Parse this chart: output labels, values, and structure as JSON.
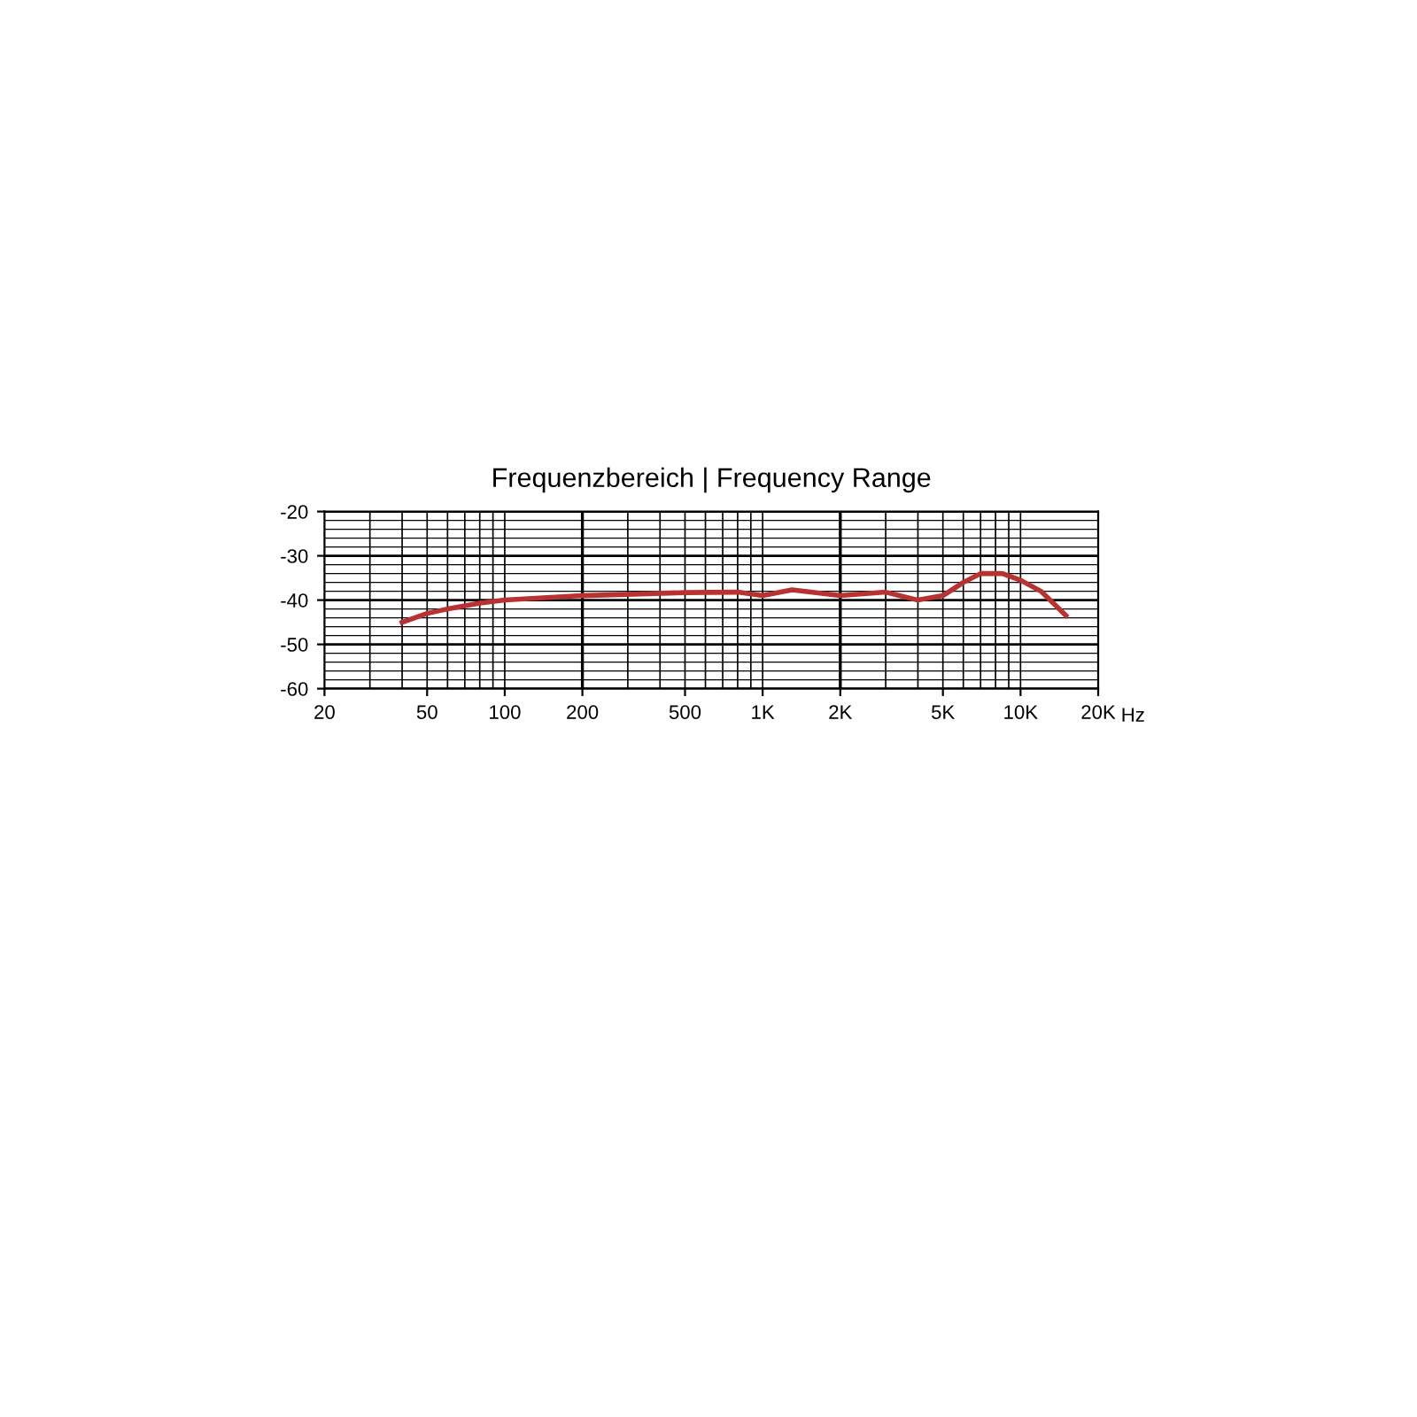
{
  "chart_data": {
    "type": "line",
    "title": "Frequenzbereich | Frequency Range",
    "x": [
      40,
      50,
      60,
      80,
      100,
      200,
      500,
      800,
      1000,
      1300,
      2000,
      3000,
      4000,
      5000,
      6000,
      7000,
      8500,
      10000,
      12000,
      15000
    ],
    "series": [
      {
        "color": "#b83232",
        "values": [
          -45,
          -43,
          -42,
          -40.7,
          -40,
          -39,
          -38.3,
          -38.2,
          -39,
          -37.7,
          -39,
          -38.2,
          -40,
          -39,
          -36,
          -34,
          -34,
          -35.5,
          -38,
          -43.5
        ]
      }
    ],
    "log": "x",
    "xlim": [
      20,
      20000
    ],
    "ylim": [
      -60,
      -20
    ],
    "xticks": [
      20,
      50,
      100,
      200,
      500,
      {
        "value": 1000,
        "label": "1K"
      },
      {
        "value": 2000,
        "label": "2K"
      },
      {
        "value": 5000,
        "label": "5K"
      },
      {
        "value": 10000,
        "label": "10K"
      },
      {
        "value": 20000,
        "label": "20K"
      }
    ],
    "xlabel": "Hz",
    "yticks": [
      -60,
      -50,
      -40,
      -30,
      -20
    ],
    "grid": true,
    "marker": "none",
    "line_style": "solid"
  }
}
